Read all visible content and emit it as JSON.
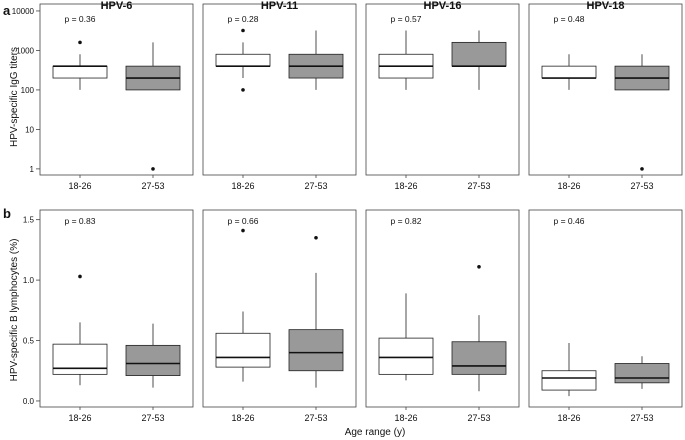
{
  "figure": {
    "x_axis_label": "Age range (y)",
    "colors": {
      "box_fill_1": "#ffffff",
      "box_fill_2": "#999999",
      "stroke": "#222222"
    }
  },
  "chart_data": [
    {
      "type": "box",
      "panel_letter": "a",
      "ylabel": "HPV-specific IgG titers",
      "yscale": "log",
      "ylim": [
        0.7,
        15000
      ],
      "yticks": [
        "10000",
        "1000",
        "100",
        "10",
        "1"
      ],
      "yticks_values": [
        10000,
        1000,
        100,
        10,
        1
      ],
      "categories": [
        "18-26",
        "27-53"
      ],
      "panels": [
        {
          "title": "HPV-6",
          "p_value": "p = 0.36",
          "boxes": [
            {
              "group": "18-26",
              "min": 100,
              "q1": 200,
              "median": 400,
              "q3": 400,
              "max": 800,
              "outliers": [
                1600
              ]
            },
            {
              "group": "27-53",
              "min": 100,
              "q1": 100,
              "median": 200,
              "q3": 400,
              "max": 1600,
              "outliers": [
                1
              ]
            }
          ]
        },
        {
          "title": "HPV-11",
          "p_value": "p = 0.28",
          "boxes": [
            {
              "group": "18-26",
              "min": 200,
              "q1": 400,
              "median": 400,
              "q3": 800,
              "max": 1600,
              "outliers": [
                3200,
                100
              ]
            },
            {
              "group": "27-53",
              "min": 100,
              "q1": 200,
              "median": 400,
              "q3": 800,
              "max": 3200,
              "outliers": []
            }
          ]
        },
        {
          "title": "HPV-16",
          "p_value": "p = 0.57",
          "boxes": [
            {
              "group": "18-26",
              "min": 100,
              "q1": 200,
              "median": 400,
              "q3": 800,
              "max": 3200,
              "outliers": []
            },
            {
              "group": "27-53",
              "min": 100,
              "q1": 400,
              "median": 400,
              "q3": 1600,
              "max": 3200,
              "outliers": []
            }
          ]
        },
        {
          "title": "HPV-18",
          "p_value": "p = 0.48",
          "boxes": [
            {
              "group": "18-26",
              "min": 100,
              "q1": 200,
              "median": 200,
              "q3": 400,
              "max": 800,
              "outliers": []
            },
            {
              "group": "27-53",
              "min": 100,
              "q1": 100,
              "median": 200,
              "q3": 400,
              "max": 800,
              "outliers": [
                1
              ]
            }
          ]
        }
      ]
    },
    {
      "type": "box",
      "panel_letter": "b",
      "ylabel": "HPV-specific B lymphocytes (%)",
      "yscale": "linear",
      "ylim": [
        -0.05,
        1.58
      ],
      "yticks": [
        "1.5",
        "1.0",
        "0.5",
        "0.0"
      ],
      "yticks_values": [
        1.5,
        1.0,
        0.5,
        0.0
      ],
      "categories": [
        "18-26",
        "27-53"
      ],
      "panels": [
        {
          "title": "",
          "p_value": "p = 0.83",
          "boxes": [
            {
              "group": "18-26",
              "min": 0.13,
              "q1": 0.22,
              "median": 0.27,
              "q3": 0.47,
              "max": 0.65,
              "outliers": [
                1.03
              ]
            },
            {
              "group": "27-53",
              "min": 0.11,
              "q1": 0.21,
              "median": 0.31,
              "q3": 0.46,
              "max": 0.64,
              "outliers": []
            }
          ]
        },
        {
          "title": "",
          "p_value": "p = 0.66",
          "boxes": [
            {
              "group": "18-26",
              "min": 0.16,
              "q1": 0.28,
              "median": 0.36,
              "q3": 0.56,
              "max": 0.74,
              "outliers": [
                1.41
              ]
            },
            {
              "group": "27-53",
              "min": 0.11,
              "q1": 0.25,
              "median": 0.4,
              "q3": 0.59,
              "max": 1.06,
              "outliers": [
                1.35
              ]
            }
          ]
        },
        {
          "title": "",
          "p_value": "p = 0.82",
          "boxes": [
            {
              "group": "18-26",
              "min": 0.17,
              "q1": 0.22,
              "median": 0.36,
              "q3": 0.52,
              "max": 0.89,
              "outliers": []
            },
            {
              "group": "27-53",
              "min": 0.08,
              "q1": 0.22,
              "median": 0.29,
              "q3": 0.49,
              "max": 0.71,
              "outliers": [
                1.11
              ]
            }
          ]
        },
        {
          "title": "",
          "p_value": "p = 0.46",
          "boxes": [
            {
              "group": "18-26",
              "min": 0.04,
              "q1": 0.09,
              "median": 0.19,
              "q3": 0.25,
              "max": 0.48,
              "outliers": []
            },
            {
              "group": "27-53",
              "min": 0.1,
              "q1": 0.15,
              "median": 0.19,
              "q3": 0.31,
              "max": 0.37,
              "outliers": []
            }
          ]
        }
      ]
    }
  ]
}
